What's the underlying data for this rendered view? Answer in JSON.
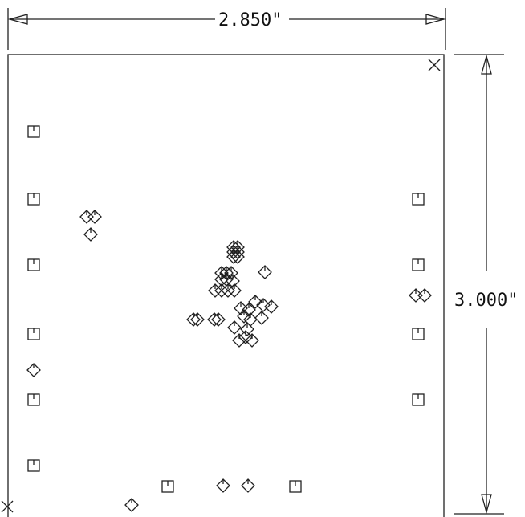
{
  "dimensions": {
    "width_label": "2.850\"",
    "height_label": "3.000\""
  },
  "symbols": {
    "square_marker": "square-tick",
    "diamond_marker": "diamond-tick",
    "corner_marker": "x-mark"
  }
}
